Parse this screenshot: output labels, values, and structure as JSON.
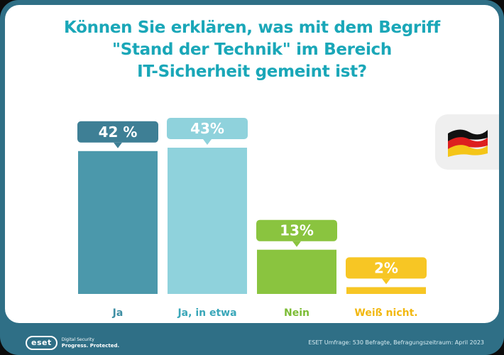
{
  "title": {
    "line1": "Können Sie erklären, was mit dem Begriff",
    "line2": "\"Stand der Technik\" im Bereich",
    "line3": "IT-Sicherheit gemeint ist?"
  },
  "chart_data": {
    "type": "bar",
    "categories": [
      "Ja",
      "Ja, in etwa",
      "Nein",
      "Weiß nicht."
    ],
    "values": [
      42,
      43,
      13,
      2
    ],
    "data_labels": [
      "42 %",
      "43%",
      "13%",
      "2%"
    ],
    "colors": [
      "#4b98ab",
      "#8fd2dc",
      "#8ac43f",
      "#f7c624"
    ],
    "label_box_colors": [
      "#3e7f95",
      "#8fd2dc",
      "#8ac43f",
      "#f7c624"
    ],
    "category_label_colors": [
      "#3e8ea3",
      "#3aa7b9",
      "#7cbc35",
      "#f2b811"
    ],
    "ylim": [
      0,
      43
    ],
    "grid": false,
    "legend": "none"
  },
  "flag": {
    "icon": "german-flag-icon",
    "colors": [
      "#111111",
      "#dd1f1f",
      "#f4c518"
    ]
  },
  "footer": {
    "logo_text": "eset",
    "tagline_1": "Digital Security",
    "tagline_2": "Progress. Protected.",
    "source": "ESET Umfrage: 530 Befragte, Befragungszeitraum: April 2023"
  },
  "colors": {
    "frame": "#2f6f86",
    "title": "#1aa7b8"
  }
}
